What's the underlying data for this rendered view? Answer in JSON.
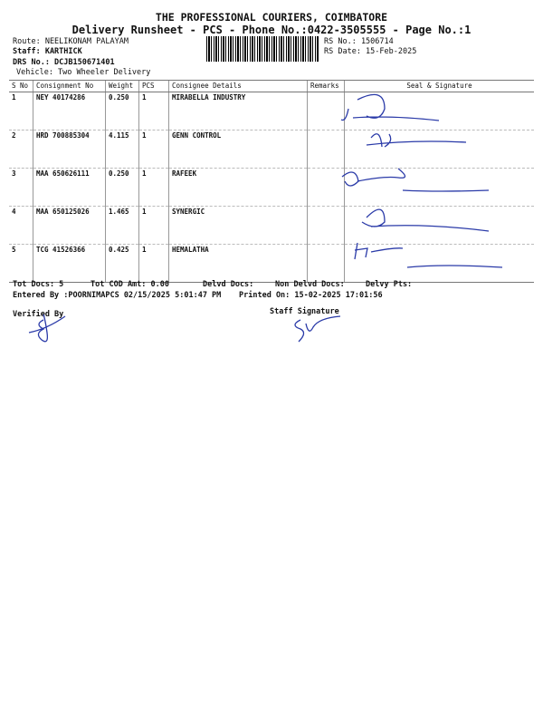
{
  "header": {
    "title": "THE PROFESSIONAL COURIERS, COIMBATORE",
    "subtitle": "Delivery Runsheet - PCS - Phone No.:0422-3505555 - Page No.:1"
  },
  "info": {
    "route": "Route: NEELIKONAM PALAYAM",
    "staff": "Staff: KARTHICK",
    "drs": "DRS No.: DCJB150671401",
    "vehicle": "Vehicle: Two Wheeler Delivery",
    "rs_no": "RS No.: 1506714",
    "rs_date": "RS Date: 15-Feb-2025"
  },
  "table": {
    "headers": [
      "S No",
      "Consignment No",
      "Weight",
      "PCS",
      "Consignee Details",
      "Remarks",
      "Seal & Signature"
    ],
    "rows": [
      {
        "sno": "1",
        "cn": "NEY 40174286",
        "weight": "0.250",
        "pcs": "1",
        "consignee": "MIRABELLA INDUSTRY",
        "remarks": ""
      },
      {
        "sno": "2",
        "cn": "HRD 700885304",
        "weight": "4.115",
        "pcs": "1",
        "consignee": "GENN CONTROL",
        "remarks": ""
      },
      {
        "sno": "3",
        "cn": "MAA 650626111",
        "weight": "0.250",
        "pcs": "1",
        "consignee": "RAFEEK",
        "remarks": ""
      },
      {
        "sno": "4",
        "cn": "MAA 650125026",
        "weight": "1.465",
        "pcs": "1",
        "consignee": "SYNERGIC",
        "remarks": ""
      },
      {
        "sno": "5",
        "cn": "TCG 41526366",
        "weight": "0.425",
        "pcs": "1",
        "consignee": "HEMALATHA",
        "remarks": ""
      }
    ]
  },
  "footer": {
    "tot_docs": "Tot Docs:   5",
    "tot_cod": "Tot COD Amt:    0.00",
    "delvd": "Delvd Docs:",
    "non_delvd": "Non Delvd Docs:",
    "delvy_pts": "Delvy Pts:",
    "entered": "Entered By :POORNIMAPCS 02/15/2025 5:01:47 PM",
    "printed": "Printed On: 15-02-2025 17:01:56",
    "verified": "Verified By",
    "staff_sig": "Staff Signature"
  },
  "colors": {
    "ink": "#2a3aa8"
  }
}
